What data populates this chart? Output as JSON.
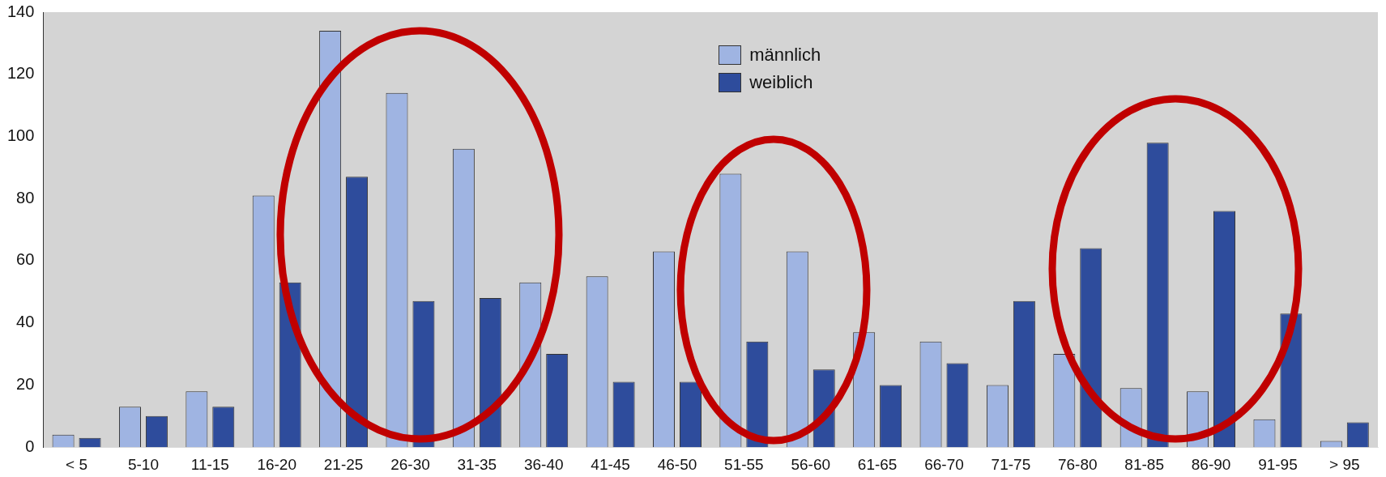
{
  "chart_data": {
    "type": "bar",
    "categories": [
      "< 5",
      "5-10",
      "11-15",
      "16-20",
      "21-25",
      "26-30",
      "31-35",
      "36-40",
      "41-45",
      "46-50",
      "51-55",
      "56-60",
      "61-65",
      "66-70",
      "71-75",
      "76-80",
      "81-85",
      "86-90",
      "91-95",
      "> 95"
    ],
    "series": [
      {
        "name": "männlich",
        "color": "#9fb4e2",
        "values": [
          4,
          13,
          18,
          81,
          134,
          114,
          96,
          53,
          55,
          63,
          88,
          63,
          37,
          34,
          20,
          30,
          19,
          18,
          9,
          2
        ]
      },
      {
        "name": "weiblich",
        "color": "#2e4c9c",
        "values": [
          3,
          10,
          13,
          53,
          87,
          47,
          48,
          30,
          21,
          21,
          34,
          25,
          20,
          27,
          47,
          64,
          98,
          76,
          43,
          8
        ]
      }
    ],
    "ylim": [
      0,
      140
    ],
    "yticks": [
      0,
      20,
      40,
      60,
      80,
      100,
      120,
      140
    ],
    "grid": false,
    "legend": "top"
  }
}
